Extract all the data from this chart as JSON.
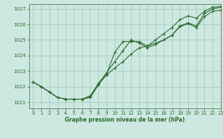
{
  "title": "Graphe pression niveau de la mer (hPa)",
  "bg_color": "#cce8e0",
  "plot_bg_color": "#cce8e0",
  "line_color": "#2d6b2d",
  "grid_color": "#8fbfaf",
  "xlim": [
    -0.5,
    23
  ],
  "ylim": [
    1020.6,
    1027.3
  ],
  "yticks": [
    1021,
    1022,
    1023,
    1024,
    1025,
    1026,
    1027
  ],
  "xticks": [
    0,
    1,
    2,
    3,
    4,
    5,
    6,
    7,
    8,
    9,
    10,
    11,
    12,
    13,
    14,
    15,
    16,
    17,
    18,
    19,
    20,
    21,
    22,
    23
  ],
  "series1_x": [
    0,
    1,
    2,
    3,
    4,
    5,
    6,
    7,
    8,
    9,
    10,
    11,
    12,
    13,
    14,
    15,
    16,
    17,
    18,
    19,
    20,
    21,
    22,
    23
  ],
  "series1_y": [
    1022.3,
    1022.0,
    1021.65,
    1021.3,
    1021.2,
    1021.2,
    1021.2,
    1021.3,
    1022.1,
    1022.8,
    1024.2,
    1024.9,
    1024.9,
    1024.9,
    1024.6,
    1024.8,
    1025.0,
    1025.3,
    1025.9,
    1026.1,
    1025.9,
    1026.7,
    1027.0,
    1027.1
  ],
  "series2_x": [
    0,
    1,
    2,
    3,
    4,
    5,
    6,
    7,
    8,
    9,
    10,
    11,
    12,
    13,
    14,
    15,
    16,
    17,
    18,
    19,
    20,
    21,
    22,
    23
  ],
  "series2_y": [
    1022.3,
    1022.0,
    1021.65,
    1021.3,
    1021.2,
    1021.2,
    1021.2,
    1021.4,
    1022.2,
    1022.9,
    1023.6,
    1024.3,
    1025.0,
    1024.8,
    1024.5,
    1024.7,
    1025.0,
    1025.3,
    1025.85,
    1026.05,
    1025.8,
    1026.5,
    1026.85,
    1026.9
  ],
  "series3_x": [
    0,
    1,
    2,
    3,
    4,
    5,
    6,
    7,
    8,
    9,
    10,
    11,
    12,
    13,
    14,
    15,
    16,
    17,
    18,
    19,
    20,
    21,
    22,
    23
  ],
  "series3_y": [
    1022.3,
    1022.0,
    1021.65,
    1021.3,
    1021.2,
    1021.2,
    1021.2,
    1021.35,
    1022.15,
    1022.75,
    1023.2,
    1023.6,
    1024.1,
    1024.5,
    1024.6,
    1025.0,
    1025.4,
    1025.8,
    1026.3,
    1026.55,
    1026.4,
    1026.85,
    1027.1,
    1027.15
  ],
  "label_fontsize": 5.5,
  "tick_fontsize": 5,
  "marker_size": 2.5,
  "line_width": 0.8
}
